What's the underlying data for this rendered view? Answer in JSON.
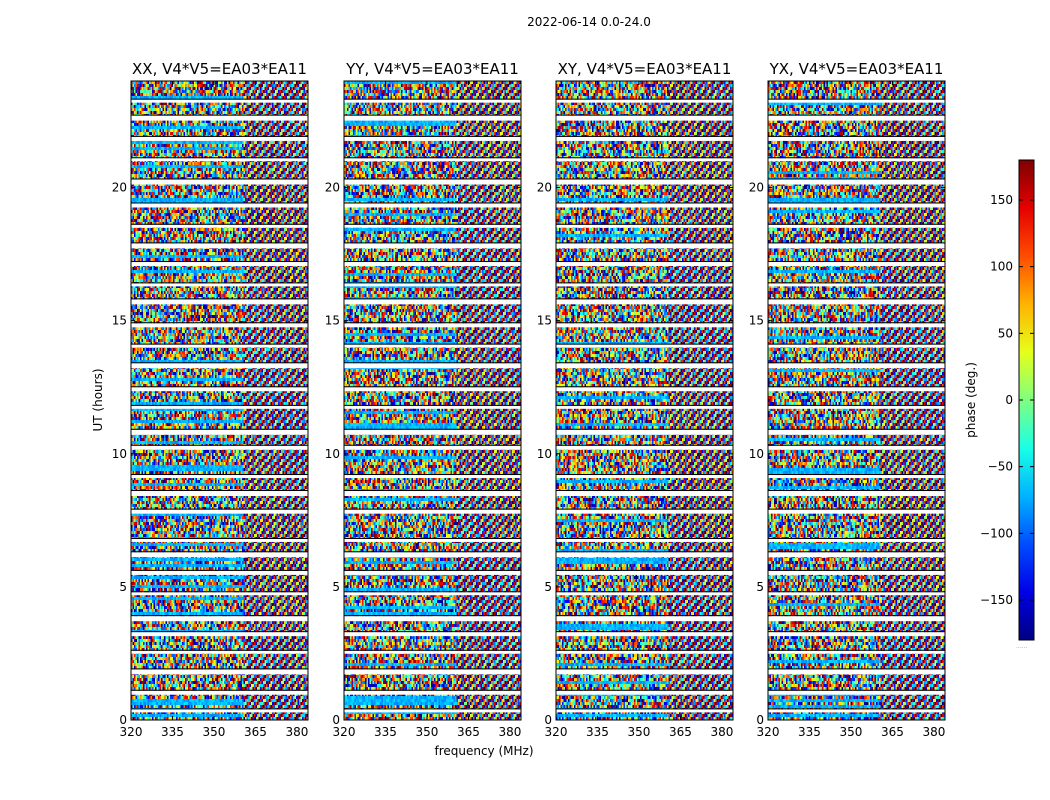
{
  "figure": {
    "suptitle": "2022-06-14 0.0-24.0",
    "xlabel": "frequency (MHz)",
    "ylabel": "UT (hours)",
    "colorbar_label": "phase (deg.)",
    "colorbar_dots": "......"
  },
  "chart_data": [
    {
      "type": "heatmap",
      "title": "XX, V4*V5=EA03*EA11",
      "xlabel": "frequency (MHz)",
      "ylabel": "UT (hours)",
      "xlim": [
        320,
        384
      ],
      "ylim": [
        0,
        24
      ],
      "xticks": [
        "320",
        "335",
        "350",
        "365",
        "380"
      ],
      "yticks": [
        "0",
        "5",
        "10",
        "15",
        "20"
      ],
      "value_range": [
        -180,
        180
      ],
      "colormap": "jet"
    },
    {
      "type": "heatmap",
      "title": "YY, V4*V5=EA03*EA11",
      "xlim": [
        320,
        384
      ],
      "ylim": [
        0,
        24
      ],
      "xticks": [
        "320",
        "335",
        "350",
        "365",
        "380"
      ],
      "yticks": [
        "0",
        "5",
        "10",
        "15",
        "20"
      ],
      "value_range": [
        -180,
        180
      ],
      "colormap": "jet"
    },
    {
      "type": "heatmap",
      "title": "XY, V4*V5=EA03*EA11",
      "xlim": [
        320,
        384
      ],
      "ylim": [
        0,
        24
      ],
      "xticks": [
        "320",
        "335",
        "350",
        "365",
        "380"
      ],
      "yticks": [
        "0",
        "5",
        "10",
        "15",
        "20"
      ],
      "value_range": [
        -180,
        180
      ],
      "colormap": "jet"
    },
    {
      "type": "heatmap",
      "title": "YX, V4*V5=EA03*EA11",
      "xlim": [
        320,
        384
      ],
      "ylim": [
        0,
        24
      ],
      "xticks": [
        "320",
        "335",
        "350",
        "365",
        "380"
      ],
      "yticks": [
        "0",
        "5",
        "10",
        "15",
        "20"
      ],
      "value_range": [
        -180,
        180
      ],
      "colormap": "jet"
    }
  ],
  "colorbar": {
    "range": [
      -180,
      180
    ],
    "ticks": [
      -150,
      -100,
      -50,
      0,
      50,
      100,
      150
    ],
    "tick_labels": [
      "−150",
      "−100",
      "−50",
      "0",
      "50",
      "100",
      "150"
    ],
    "colormap": "jet"
  },
  "colors": {
    "background": "#ffffff",
    "gap": "#ffffff",
    "frame": "#000000"
  }
}
